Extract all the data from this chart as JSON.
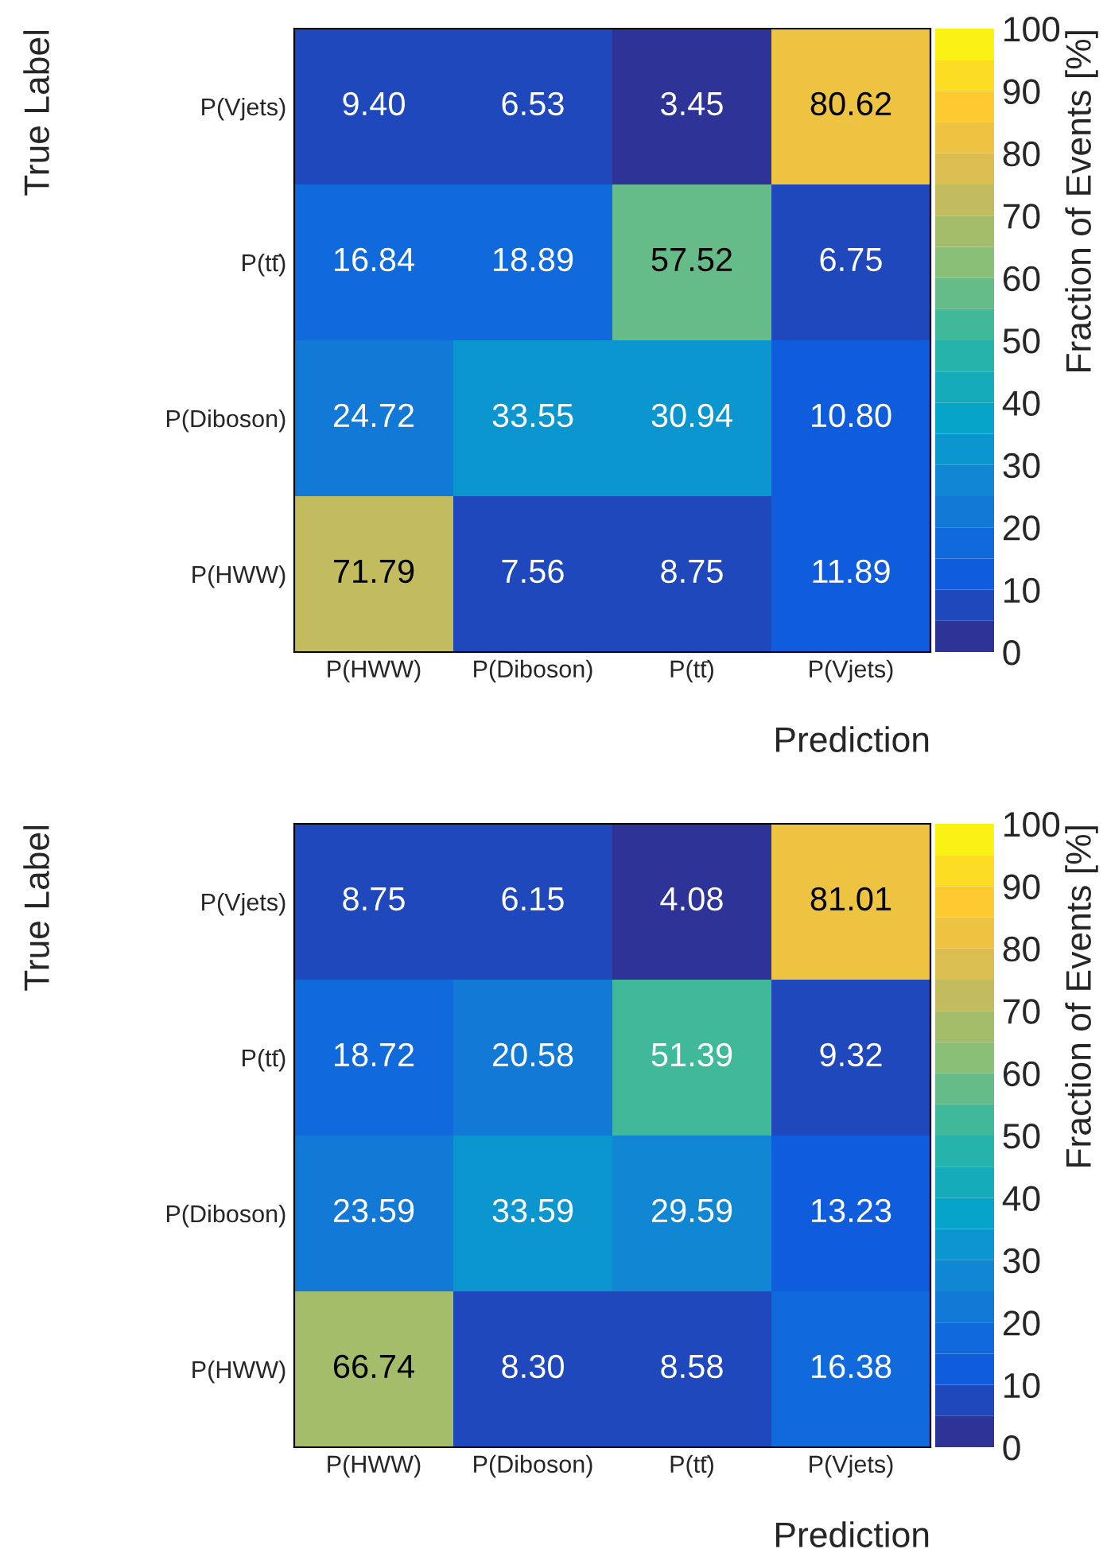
{
  "chart_data": [
    {
      "type": "heatmap",
      "xlabel": "Prediction",
      "ylabel": "True Label",
      "clabel": "Fraction of Events [%]",
      "categories": [
        "P(HWW)",
        "P(Diboson)",
        "P(tt̄)",
        "P(Vjets)"
      ],
      "y_categories": [
        "P(Vjets)",
        "P(tt̄)",
        "P(Diboson)",
        "P(HWW)"
      ],
      "cells": [
        [
          9.4,
          6.53,
          3.45,
          80.62
        ],
        [
          16.84,
          18.89,
          57.52,
          6.75
        ],
        [
          24.72,
          33.55,
          30.94,
          10.8
        ],
        [
          71.79,
          7.56,
          8.75,
          11.89
        ]
      ],
      "cell_labels": [
        [
          "9.40",
          "6.53",
          "3.45",
          "80.62"
        ],
        [
          "16.84",
          "18.89",
          "57.52",
          "6.75"
        ],
        [
          "24.72",
          "33.55",
          "30.94",
          "10.80"
        ],
        [
          "71.79",
          "7.56",
          "8.75",
          "11.89"
        ]
      ],
      "clim": [
        0,
        100
      ],
      "cticks": [
        0,
        10,
        20,
        30,
        40,
        50,
        60,
        70,
        80,
        90,
        100
      ]
    },
    {
      "type": "heatmap",
      "xlabel": "Prediction",
      "ylabel": "True Label",
      "clabel": "Fraction of Events [%]",
      "categories": [
        "P(HWW)",
        "P(Diboson)",
        "P(tt̄)",
        "P(Vjets)"
      ],
      "y_categories": [
        "P(Vjets)",
        "P(tt̄)",
        "P(Diboson)",
        "P(HWW)"
      ],
      "cells": [
        [
          8.75,
          6.15,
          4.08,
          81.01
        ],
        [
          18.72,
          20.58,
          51.39,
          9.32
        ],
        [
          23.59,
          33.59,
          29.59,
          13.23
        ],
        [
          66.74,
          8.3,
          8.58,
          16.38
        ]
      ],
      "cell_labels": [
        [
          "8.75",
          "6.15",
          "4.08",
          "81.01"
        ],
        [
          "18.72",
          "20.58",
          "51.39",
          "9.32"
        ],
        [
          "23.59",
          "33.59",
          "29.59",
          "13.23"
        ],
        [
          "66.74",
          "8.30",
          "8.58",
          "16.38"
        ]
      ],
      "clim": [
        0,
        100
      ],
      "cticks": [
        0,
        10,
        20,
        30,
        40,
        50,
        60,
        70,
        80,
        90,
        100
      ]
    }
  ]
}
